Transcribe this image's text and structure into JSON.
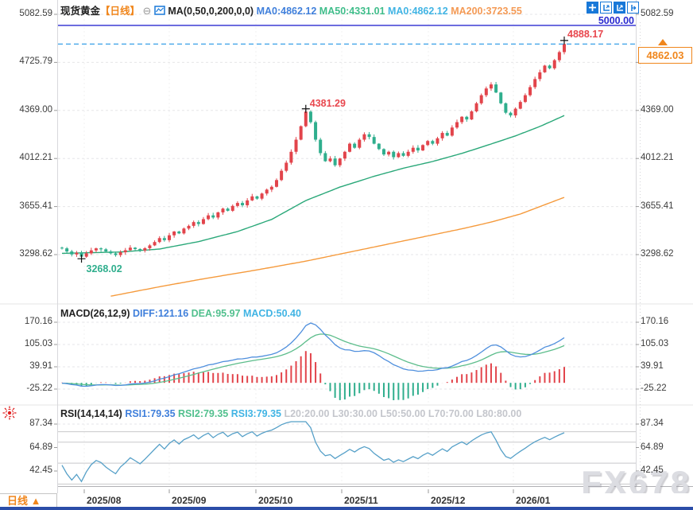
{
  "header": {
    "symbol": "现货黄金",
    "timeframe_label": "【日线】",
    "collapse_icon": "⊖",
    "ma_settings": "MA(0,50,0,200,0,0)",
    "ma_values": [
      {
        "label": "MA0:4862.12",
        "color": "#3f7fdb"
      },
      {
        "label": "MA50:4331.01",
        "color": "#3fbd8a"
      },
      {
        "label": "MA0:4862.12",
        "color": "#41b4e4"
      },
      {
        "label": "MA200:3723.55",
        "color": "#f49a55"
      }
    ]
  },
  "toolbar": {
    "icons": [
      "move-crosshair",
      "axis-scale",
      "axis-scale-active",
      "pan-right"
    ]
  },
  "price_axis": {
    "labels": [
      "5082.59",
      "4725.79",
      "4369.00",
      "4012.21",
      "3655.41",
      "3298.62"
    ]
  },
  "alert_line": {
    "label": "5000.00",
    "value": 5000,
    "color": "#2a2ad0"
  },
  "high_marker": {
    "label": "4888.17",
    "value": 4888.17,
    "color": "#e8474e"
  },
  "peak_marker": {
    "label": "4381.29",
    "value": 4381.29,
    "color": "#e8474e"
  },
  "low_marker": {
    "label": "3268.02",
    "value": 3268.02,
    "color": "#2fae8d"
  },
  "price_badge": {
    "label": "4862.03",
    "value": 4862.03,
    "color": "#f0861c"
  },
  "macd_panel": {
    "title": "MACD(26,12,9)",
    "values": [
      {
        "label": "DIFF:121.16",
        "color": "#3f7fdb"
      },
      {
        "label": "DEA:95.97",
        "color": "#52c08e"
      },
      {
        "label": "MACD:50.40",
        "color": "#41b4e4"
      }
    ],
    "axis_labels": [
      "170.16",
      "105.03",
      "39.91",
      "-25.22"
    ]
  },
  "rsi_panel": {
    "title": "RSI(14,14,14)",
    "values": [
      {
        "label": "RSI1:79.35",
        "color": "#3f7fdb"
      },
      {
        "label": "RSI2:79.35",
        "color": "#52c08e"
      },
      {
        "label": "RSI3:79.35",
        "color": "#41b4e4"
      }
    ],
    "levels": [
      "L20:20.00",
      "L30:30.00",
      "L50:50.00",
      "L70:70.00",
      "L80:80.00"
    ],
    "axis_labels": [
      "87.34",
      "64.89",
      "42.45"
    ]
  },
  "x_axis": {
    "labels": [
      "2025/08",
      "2025/09",
      "2025/10",
      "2025/11",
      "2025/12",
      "2026/01"
    ]
  },
  "footer": {
    "timeframe_tab": "日线 ▲"
  },
  "watermark": "FX678",
  "chart_data": {
    "type": "candlestick",
    "title": "现货黄金 日线 (Spot Gold Daily)",
    "price_axis_ticks": [
      5082.59,
      4725.79,
      4369.0,
      4012.21,
      3655.41,
      3298.62
    ],
    "x_tick_labels": [
      "2025/08",
      "2025/09",
      "2025/10",
      "2025/11",
      "2025/12",
      "2026/01"
    ],
    "last_price": 4862.03,
    "session_high": 4888.17,
    "marked_peak": 4381.29,
    "marked_low": 3268.02,
    "alert_level": 5000.0,
    "closes_warmup": [
      3352,
      3340,
      3348,
      3336,
      3344,
      3352,
      3342,
      3334,
      3346,
      3354,
      3344,
      3336,
      3348,
      3342,
      3352,
      3346,
      3338,
      3348,
      3342,
      3350
    ],
    "closes": [
      3345,
      3322,
      3300,
      3312,
      3283,
      3308,
      3330,
      3345,
      3338,
      3322,
      3308,
      3295,
      3316,
      3331,
      3350,
      3340,
      3329,
      3346,
      3367,
      3392,
      3421,
      3406,
      3442,
      3470,
      3456,
      3492,
      3512,
      3540,
      3526,
      3562,
      3590,
      3574,
      3612,
      3640,
      3624,
      3660,
      3682,
      3665,
      3701,
      3731,
      3714,
      3752,
      3781,
      3802,
      3852,
      3921,
      3981,
      4062,
      4152,
      4252,
      4360,
      4282,
      4152,
      4052,
      3992,
      4012,
      3962,
      4012,
      4062,
      4122,
      4092,
      4152,
      4192,
      4172,
      4122,
      4082,
      4042,
      4062,
      4022,
      4052,
      4032,
      4062,
      4092,
      4072,
      4112,
      4142,
      4122,
      4162,
      4202,
      4182,
      4242,
      4282,
      4322,
      4302,
      4362,
      4422,
      4482,
      4532,
      4562,
      4502,
      4422,
      4352,
      4332,
      4382,
      4432,
      4482,
      4542,
      4602,
      4652,
      4702,
      4682,
      4742,
      4802,
      4862.03
    ],
    "wick_overrides": {
      "4": {
        "low": 3268.02
      },
      "50": {
        "high": 4381.29
      },
      "103": {
        "high": 4888.17
      }
    },
    "ma50_points": [
      [
        0,
        3308
      ],
      [
        12,
        3318
      ],
      [
        20,
        3340
      ],
      [
        28,
        3395
      ],
      [
        36,
        3470
      ],
      [
        43,
        3560
      ],
      [
        50,
        3700
      ],
      [
        57,
        3800
      ],
      [
        64,
        3880
      ],
      [
        70,
        3940
      ],
      [
        76,
        3990
      ],
      [
        82,
        4050
      ],
      [
        88,
        4120
      ],
      [
        93,
        4180
      ],
      [
        98,
        4250
      ],
      [
        103,
        4331.01
      ]
    ],
    "ma200_points": [
      [
        10,
        2990
      ],
      [
        20,
        3060
      ],
      [
        30,
        3125
      ],
      [
        40,
        3185
      ],
      [
        50,
        3250
      ],
      [
        58,
        3310
      ],
      [
        66,
        3370
      ],
      [
        74,
        3430
      ],
      [
        82,
        3490
      ],
      [
        88,
        3540
      ],
      [
        94,
        3600
      ],
      [
        98,
        3655
      ],
      [
        103,
        3723.55
      ]
    ],
    "macd_params": [
      26,
      12,
      9
    ],
    "macd_axis_ticks": [
      170.16,
      105.03,
      39.91,
      -25.22
    ],
    "macd_last": {
      "diff": 121.16,
      "dea": 95.97,
      "macd": 50.4
    },
    "rsi_params": [
      14,
      14,
      14
    ],
    "rsi_axis_ticks": [
      87.34,
      64.89,
      42.45
    ],
    "rsi_last": 79.35,
    "rsi_ref_levels": [
      80,
      70,
      50,
      30,
      20
    ],
    "colors": {
      "candle_up": "#e2444b",
      "candle_down": "#2fae8d",
      "ma50_line": "#2aa879",
      "ma200_line": "#f59a3c",
      "diff_line": "#4f8fdd",
      "dea_line": "#5cbd8b",
      "rsi_line": "#56a0c8",
      "current_price_line": "#38a0e8",
      "alert_line": "#2a2ad0",
      "grid": "#e6e6e8"
    }
  }
}
